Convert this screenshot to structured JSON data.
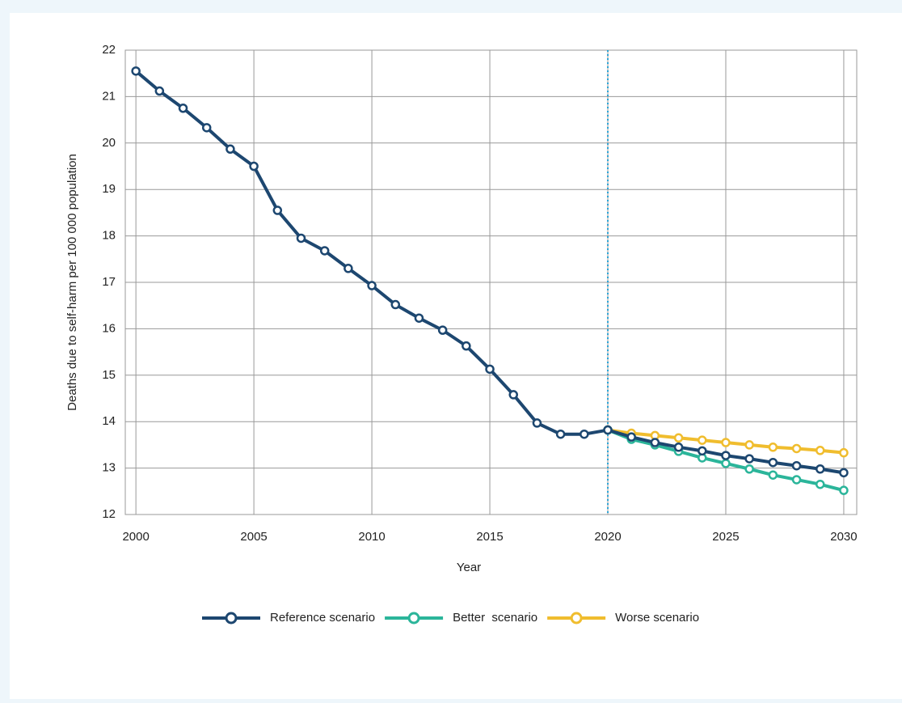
{
  "chart_data": {
    "type": "line",
    "x_label": "Year",
    "y_label": "Deaths due to self-harm per 100 000 population",
    "x": [
      2000,
      2001,
      2002,
      2003,
      2004,
      2005,
      2006,
      2007,
      2008,
      2009,
      2010,
      2011,
      2012,
      2013,
      2014,
      2015,
      2016,
      2017,
      2018,
      2019,
      2020,
      2021,
      2022,
      2023,
      2024,
      2025,
      2026,
      2027,
      2028,
      2029,
      2030
    ],
    "series": [
      {
        "name": "Reference scenario",
        "color": "#1d4770",
        "values": [
          21.55,
          21.12,
          20.75,
          20.33,
          19.87,
          19.5,
          18.55,
          17.95,
          17.68,
          17.3,
          16.93,
          16.52,
          16.23,
          15.97,
          15.63,
          15.13,
          14.58,
          13.97,
          13.73,
          13.73,
          13.82,
          13.67,
          13.55,
          13.45,
          13.37,
          13.27,
          13.2,
          13.12,
          13.05,
          12.98,
          12.9
        ]
      },
      {
        "name": "Better  scenario",
        "color": "#2bb59a",
        "values": [
          null,
          null,
          null,
          null,
          null,
          null,
          null,
          null,
          null,
          null,
          null,
          null,
          null,
          null,
          null,
          null,
          null,
          null,
          null,
          null,
          13.82,
          13.62,
          13.5,
          13.36,
          13.22,
          13.1,
          12.98,
          12.85,
          12.75,
          12.65,
          12.52
        ]
      },
      {
        "name": "Worse scenario",
        "color": "#f0bd2e",
        "values": [
          null,
          null,
          null,
          null,
          null,
          null,
          null,
          null,
          null,
          null,
          null,
          null,
          null,
          null,
          null,
          null,
          null,
          null,
          null,
          null,
          13.82,
          13.75,
          13.7,
          13.65,
          13.6,
          13.55,
          13.5,
          13.45,
          13.42,
          13.38,
          13.33
        ]
      }
    ],
    "xlim": [
      1999.55,
      2030.55
    ],
    "ylim": [
      12,
      22
    ],
    "xticks": [
      2000,
      2005,
      2010,
      2015,
      2020,
      2025,
      2030
    ],
    "yticks": [
      12,
      13,
      14,
      15,
      16,
      17,
      18,
      19,
      20,
      21,
      22
    ],
    "grid": true,
    "vline_x": 2020,
    "vline_color": "#2aa6d9",
    "legend": "bottom"
  }
}
